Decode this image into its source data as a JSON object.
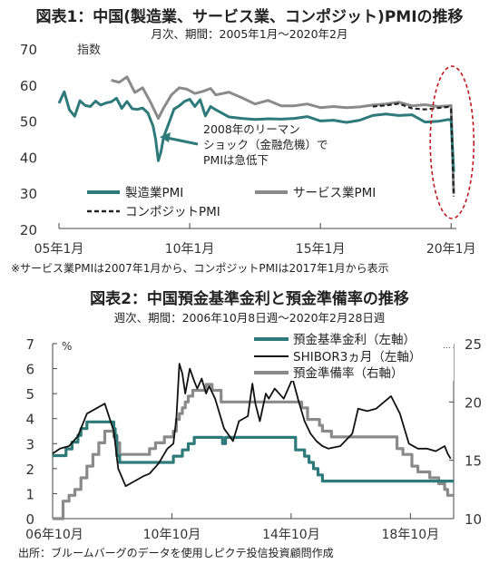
{
  "chart_data": [
    {
      "type": "line",
      "title": "図表1：中国(製造業、サービス業、コンポジット)PMIの推移",
      "subtitle": "月次、期間：2005年1月～2020年2月",
      "ylabel": "指数",
      "ylim": [
        20,
        70
      ],
      "yticks": [
        "20",
        "30",
        "40",
        "50",
        "60",
        "70"
      ],
      "xlim": [
        2005.0,
        2020.2
      ],
      "xticks": [
        {
          "x": 2005.0,
          "label": "05年1月"
        },
        {
          "x": 2010.0,
          "label": "10年1月"
        },
        {
          "x": 2015.0,
          "label": "15年1月"
        },
        {
          "x": 2020.0,
          "label": "20年1月"
        }
      ],
      "grid": false,
      "legend": "bottom-left",
      "annotation": [
        "2008年のリーマン",
        "ショック（金融危機）で",
        "PMIは急低下"
      ],
      "note": "※サービス業PMIは2007年1月から、コンポジットPMIは2017年1月から表示",
      "series": [
        {
          "name": "製造業PMI",
          "color": "#2e7a7a",
          "dash": false,
          "x": [
            2005.0,
            2005.2,
            2005.4,
            2005.6,
            2005.8,
            2006.0,
            2006.2,
            2006.4,
            2006.6,
            2006.8,
            2007.0,
            2007.2,
            2007.4,
            2007.6,
            2007.8,
            2008.0,
            2008.2,
            2008.4,
            2008.6,
            2008.7,
            2008.8,
            2008.9,
            2009.0,
            2009.2,
            2009.4,
            2009.6,
            2009.8,
            2010.0,
            2010.2,
            2010.4,
            2010.6,
            2010.8,
            2011.0,
            2011.5,
            2012.0,
            2012.5,
            2013.0,
            2013.5,
            2014.0,
            2014.5,
            2015.0,
            2015.5,
            2016.0,
            2016.5,
            2017.0,
            2017.5,
            2018.0,
            2018.5,
            2019.0,
            2019.5,
            2019.9,
            2020.0,
            2020.1
          ],
          "y": [
            54.7,
            57.9,
            52.9,
            51.1,
            55.4,
            54.1,
            53.8,
            55.3,
            54.2,
            54.8,
            55.1,
            56.1,
            53.3,
            55.2,
            53.2,
            53.0,
            53.4,
            52.0,
            48.4,
            44.6,
            38.8,
            41.2,
            45.3,
            49.1,
            53.1,
            54.0,
            55.2,
            55.8,
            53.8,
            55.7,
            51.2,
            53.8,
            52.9,
            50.9,
            50.5,
            50.2,
            50.4,
            50.3,
            50.5,
            51.0,
            49.8,
            50.0,
            49.4,
            50.0,
            51.3,
            51.7,
            51.3,
            51.5,
            49.5,
            49.7,
            50.2,
            50.0,
            35.7
          ]
        },
        {
          "name": "サービス業PMI",
          "color": "#8a8a8a",
          "dash": false,
          "x": [
            2007.0,
            2007.3,
            2007.6,
            2007.9,
            2008.2,
            2008.5,
            2008.8,
            2009.0,
            2009.3,
            2009.6,
            2009.9,
            2010.2,
            2010.5,
            2010.8,
            2011.0,
            2011.5,
            2012.0,
            2012.5,
            2013.0,
            2013.5,
            2014.0,
            2014.5,
            2015.0,
            2015.5,
            2016.0,
            2016.5,
            2017.0,
            2017.5,
            2018.0,
            2018.5,
            2019.0,
            2019.5,
            2019.9,
            2020.0,
            2020.1
          ],
          "y": [
            61.1,
            60.5,
            62.0,
            57.7,
            59.0,
            55.0,
            50.5,
            53.4,
            57.0,
            59.0,
            58.6,
            57.4,
            58.0,
            58.8,
            57.0,
            57.8,
            56.2,
            54.5,
            55.5,
            54.0,
            54.0,
            54.5,
            53.5,
            53.8,
            53.5,
            53.7,
            54.2,
            54.5,
            55.0,
            54.0,
            54.3,
            53.8,
            54.0,
            54.1,
            29.6
          ]
        },
        {
          "name": "コンポジットPMI",
          "color": "#222222",
          "dash": true,
          "x": [
            2017.0,
            2017.5,
            2018.0,
            2018.5,
            2019.0,
            2019.5,
            2019.9,
            2020.0,
            2020.1
          ],
          "y": [
            53.8,
            54.1,
            54.6,
            53.3,
            53.0,
            53.4,
            53.7,
            53.0,
            28.9
          ]
        }
      ]
    },
    {
      "type": "line",
      "title": "図表2：中国預金基準金利と預金準備率の推移",
      "subtitle": "週次、期間：2006年10月8日週～2020年2月28日週",
      "ylabel": "%",
      "y2label": "%",
      "ylim": [
        0,
        7
      ],
      "yticks": [
        "0",
        "1",
        "2",
        "3",
        "4",
        "5",
        "6",
        "7"
      ],
      "y2lim": [
        10,
        25
      ],
      "y2ticks": [
        "10",
        "15",
        "20",
        "25"
      ],
      "xlim": [
        2006.75,
        2020.2
      ],
      "xticks": [
        {
          "x": 2006.75,
          "label": "06年10月"
        },
        {
          "x": 2010.75,
          "label": "10年10月"
        },
        {
          "x": 2014.75,
          "label": "14年10月"
        },
        {
          "x": 2018.75,
          "label": "18年10月"
        }
      ],
      "grid": false,
      "legend": "top-right",
      "source": "出所：ブルームバーグのデータを使用しピクテ投信投資顧問作成",
      "series": [
        {
          "name": "預金基準金利（左軸）",
          "axis": "left",
          "color": "#2e7a7a",
          "step": true,
          "x": [
            2006.75,
            2007.2,
            2007.4,
            2007.6,
            2007.7,
            2007.9,
            2008.8,
            2008.85,
            2008.9,
            2009.0,
            2010.8,
            2011.1,
            2011.3,
            2011.5,
            2012.45,
            2012.55,
            2014.9,
            2015.2,
            2015.35,
            2015.5,
            2015.65,
            2015.8,
            2020.2
          ],
          "y": [
            2.52,
            2.79,
            3.06,
            3.33,
            3.6,
            3.87,
            3.6,
            3.33,
            2.52,
            2.25,
            2.5,
            2.75,
            3.0,
            3.25,
            3.0,
            3.25,
            2.75,
            2.5,
            2.25,
            2.0,
            1.75,
            1.5,
            1.5
          ]
        },
        {
          "name": "SHIBOR3ヵ月（左軸）",
          "axis": "left",
          "color": "#111111",
          "step": false,
          "x": [
            2006.75,
            2007.0,
            2007.3,
            2007.6,
            2007.9,
            2008.2,
            2008.5,
            2008.8,
            2008.95,
            2009.2,
            2009.5,
            2009.8,
            2010.0,
            2010.3,
            2010.6,
            2010.8,
            2010.9,
            2011.0,
            2011.1,
            2011.2,
            2011.35,
            2011.5,
            2011.6,
            2011.75,
            2011.9,
            2012.0,
            2012.2,
            2012.5,
            2012.8,
            2013.0,
            2013.3,
            2013.45,
            2013.55,
            2013.7,
            2013.9,
            2014.0,
            2014.2,
            2014.5,
            2014.8,
            2015.0,
            2015.2,
            2015.4,
            2015.6,
            2015.8,
            2016.0,
            2016.4,
            2016.8,
            2017.0,
            2017.3,
            2017.6,
            2017.9,
            2018.1,
            2018.4,
            2018.7,
            2019.0,
            2019.3,
            2019.6,
            2019.9,
            2020.0,
            2020.1
          ],
          "y": [
            2.6,
            2.8,
            2.9,
            3.3,
            4.2,
            4.4,
            4.6,
            3.5,
            2.0,
            1.3,
            1.5,
            1.7,
            1.8,
            2.2,
            2.8,
            3.0,
            4.0,
            6.2,
            5.8,
            5.0,
            6.0,
            5.5,
            5.2,
            5.6,
            5.0,
            5.3,
            4.8,
            3.6,
            3.1,
            3.9,
            4.1,
            5.4,
            4.6,
            3.9,
            5.0,
            4.8,
            5.2,
            4.8,
            5.6,
            4.7,
            3.9,
            3.4,
            3.1,
            2.9,
            2.8,
            2.9,
            3.4,
            4.4,
            4.3,
            4.4,
            4.7,
            4.9,
            4.2,
            3.0,
            2.8,
            2.8,
            2.7,
            2.9,
            2.6,
            2.4
          ]
        },
        {
          "name": "預金準備率（右軸）",
          "axis": "right",
          "color": "#8a8a8a",
          "step": true,
          "x": [
            2006.75,
            2007.1,
            2007.3,
            2007.5,
            2007.7,
            2007.9,
            2008.1,
            2008.3,
            2008.5,
            2008.8,
            2008.9,
            2009.0,
            2010.0,
            2010.2,
            2010.5,
            2010.8,
            2010.9,
            2011.0,
            2011.1,
            2011.2,
            2011.3,
            2011.45,
            2011.9,
            2012.1,
            2012.4,
            2015.1,
            2015.3,
            2015.7,
            2015.8,
            2016.1,
            2018.3,
            2018.5,
            2018.8,
            2019.0,
            2019.4,
            2019.7,
            2019.9,
            2020.0,
            2020.2
          ],
          "y": [
            10.0,
            11.5,
            12.0,
            12.5,
            13.5,
            14.5,
            15.5,
            16.5,
            17.5,
            17.0,
            16.5,
            15.5,
            16.0,
            16.5,
            17.0,
            17.5,
            18.5,
            19.0,
            19.5,
            20.0,
            20.5,
            21.0,
            21.5,
            21.0,
            20.0,
            19.5,
            18.5,
            18.0,
            17.5,
            17.0,
            16.0,
            15.5,
            14.5,
            14.0,
            13.5,
            13.0,
            12.5,
            12.0,
            12.0
          ]
        }
      ]
    }
  ]
}
